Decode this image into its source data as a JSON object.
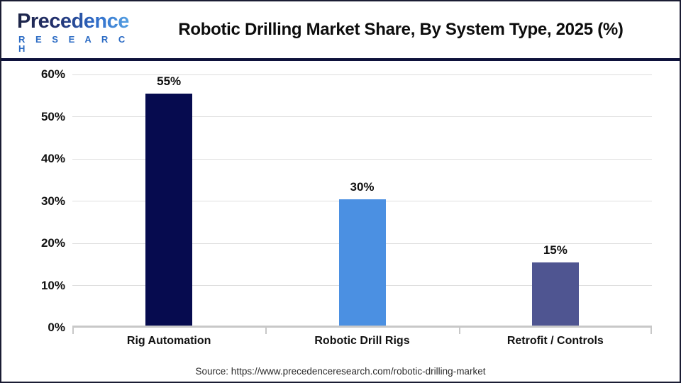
{
  "logo": {
    "line1": "Precedence",
    "line2": "R E S E A R C H"
  },
  "header": {
    "title": "Robotic Drilling Market Share, By System Type, 2025 (%)"
  },
  "chart_data": {
    "type": "bar",
    "title": "Robotic Drilling Market Share, By System Type, 2025 (%)",
    "categories": [
      "Rig Automation",
      "Robotic Drill Rigs",
      "Retrofit / Controls"
    ],
    "values": [
      55,
      30,
      15
    ],
    "value_labels": [
      "55%",
      "30%",
      "15%"
    ],
    "bar_colors": [
      "#060b4f",
      "#4b90e2",
      "#4f5591"
    ],
    "xlabel": "",
    "ylabel": "",
    "ylim": [
      0,
      60
    ],
    "ytick_step": 10,
    "ytick_labels": [
      "0%",
      "10%",
      "20%",
      "30%",
      "40%",
      "50%",
      "60%"
    ],
    "grid": true,
    "legend": false,
    "grid_color": "#dedede",
    "axis_color": "#c8c8c8"
  },
  "footer": {
    "source": "Source: https://www.precedenceresearch.com/robotic-drilling-market"
  }
}
